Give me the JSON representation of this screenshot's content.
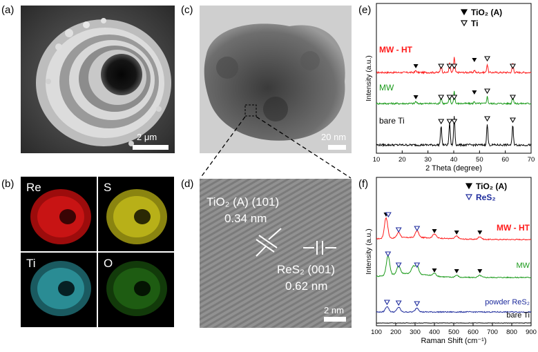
{
  "panels": {
    "a": {
      "label": "(a)",
      "scalebar": "2 μm"
    },
    "b": {
      "label": "(b)",
      "maps": [
        "Re",
        "S",
        "Ti",
        "O"
      ]
    },
    "c": {
      "label": "(c)",
      "scalebar": "20 nm"
    },
    "d": {
      "label": "(d)",
      "scalebar": "2 nm",
      "ann_tio2": "TiO₂ (A) (101)",
      "ann_tio2_d": "0.34 nm",
      "ann_res2": "ReS₂ (001)",
      "ann_res2_d": "0.62 nm"
    },
    "e": {
      "label": "(e)"
    },
    "f": {
      "label": "(f)"
    }
  },
  "colors": {
    "mw_ht": "#ff1a1a",
    "mw": "#1a9a1a",
    "powder_res2": "#1c2a9c",
    "bare_ti": "#000000",
    "map_re": "#d01010",
    "map_s": "#c8c018",
    "map_ti": "#30b0b8",
    "map_o": "#2e8a18"
  },
  "chart_data": [
    {
      "type": "line",
      "panel": "e",
      "xlabel": "2 Theta (degree)",
      "ylabel": "Intensity (a.u.)",
      "xlim": [
        10,
        70
      ],
      "xticks": [
        10,
        20,
        30,
        40,
        50,
        60,
        70
      ],
      "legend": [
        {
          "marker": "filled-triangle",
          "label": "TiO₂ (A)"
        },
        {
          "marker": "open-triangle",
          "label": "Ti"
        }
      ],
      "series": [
        {
          "name": "MW - HT",
          "color": "#ff1a1a",
          "peaks": [
            [
              25.3,
              3
            ],
            [
              35.1,
              12
            ],
            [
              38.4,
              14
            ],
            [
              40.2,
              22
            ],
            [
              48.0,
              3
            ],
            [
              53.0,
              12
            ],
            [
              62.9,
              14
            ]
          ],
          "markers_filled": [
            25.3,
            48.0
          ],
          "markers_open": [
            35.1,
            38.4,
            40.2,
            53.0,
            62.9
          ]
        },
        {
          "name": "MW",
          "color": "#1a9a1a",
          "peaks": [
            [
              25.3,
              3
            ],
            [
              35.1,
              10
            ],
            [
              38.4,
              12
            ],
            [
              40.2,
              18
            ],
            [
              48.0,
              3
            ],
            [
              53.0,
              10
            ],
            [
              62.9,
              12
            ]
          ],
          "markers_filled": [
            25.3,
            48.0
          ],
          "markers_open": [
            35.1,
            38.4,
            40.2,
            53.0,
            62.9
          ]
        },
        {
          "name": "bare Ti",
          "color": "#000000",
          "peaks": [
            [
              35.1,
              28
            ],
            [
              38.4,
              32
            ],
            [
              40.2,
              42
            ],
            [
              53.0,
              30
            ],
            [
              62.9,
              28
            ]
          ],
          "markers_open": [
            35.1,
            38.4,
            40.2,
            53.0,
            62.9
          ]
        }
      ]
    },
    {
      "type": "line",
      "panel": "f",
      "xlabel": "Raman Shift (cm⁻¹)",
      "ylabel": "Intensity (a.u.)",
      "xlim": [
        100,
        900
      ],
      "xticks": [
        100,
        200,
        300,
        400,
        500,
        600,
        700,
        800,
        900
      ],
      "legend": [
        {
          "marker": "filled-triangle",
          "label": "TiO₂ (A)"
        },
        {
          "marker": "open-triangle",
          "label": "ReS₂"
        }
      ],
      "series": [
        {
          "name": "MW - HT",
          "color": "#ff1a1a",
          "peaks": [
            [
              150,
              30
            ],
            [
              215,
              8
            ],
            [
              310,
              10
            ],
            [
              400,
              6
            ],
            [
              515,
              4
            ],
            [
              635,
              4
            ]
          ],
          "markers_filled": [
            150,
            400,
            515,
            635
          ],
          "markers_open": [
            162,
            215,
            310
          ]
        },
        {
          "name": "MW",
          "color": "#1a9a1a",
          "peaks": [
            [
              160,
              28
            ],
            [
              215,
              12
            ],
            [
              290,
              10
            ],
            [
              310,
              12
            ],
            [
              400,
              4
            ],
            [
              515,
              3
            ],
            [
              635,
              3
            ]
          ],
          "markers_filled": [
            400,
            515,
            635
          ],
          "markers_open": [
            160,
            215,
            310
          ]
        },
        {
          "name": "powder ReS₂",
          "color": "#1c2a9c",
          "peaks": [
            [
              155,
              8
            ],
            [
              215,
              7
            ],
            [
              310,
              6
            ]
          ],
          "markers_open": [
            155,
            215,
            310
          ]
        },
        {
          "name": "bare Ti",
          "color": "#000000",
          "peaks": []
        }
      ]
    }
  ]
}
